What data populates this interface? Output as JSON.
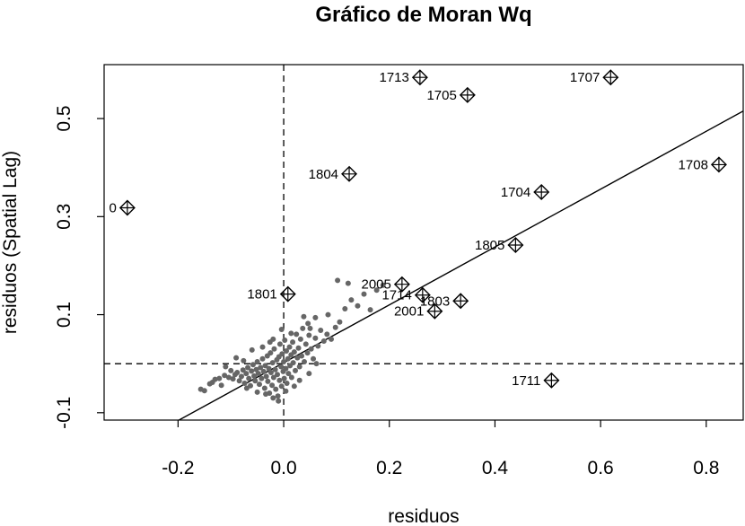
{
  "chart_data": {
    "type": "scatter",
    "title": "Gráfico de Moran Wq",
    "xlabel": "residuos",
    "ylabel": "residuos (Spatial Lag)",
    "xlim": [
      -0.34,
      0.87
    ],
    "ylim": [
      -0.115,
      0.61
    ],
    "x_ticks": [
      -0.2,
      0.0,
      0.2,
      0.4,
      0.6,
      0.8
    ],
    "x_tick_labels": [
      "-0.2",
      "0.0",
      "0.2",
      "0.4",
      "0.6",
      "0.8"
    ],
    "y_ticks": [
      -0.1,
      0.1,
      0.3,
      0.5
    ],
    "y_tick_labels": [
      "-0.1",
      "0.1",
      "0.3",
      "0.5"
    ],
    "reference_lines": {
      "x_mean": 0.0,
      "y_mean": 0.0,
      "style": "dashed"
    },
    "regression_line": {
      "slope": 0.59,
      "intercept": 0.002
    },
    "grid": false,
    "influential_points": [
      {
        "label": "1713",
        "x": 0.258,
        "y": 0.584
      },
      {
        "label": "1707",
        "x": 0.619,
        "y": 0.584
      },
      {
        "label": "1705",
        "x": 0.348,
        "y": 0.548
      },
      {
        "label": "1804",
        "x": 0.124,
        "y": 0.387
      },
      {
        "label": "1708",
        "x": 0.824,
        "y": 0.406
      },
      {
        "label": "1704",
        "x": 0.488,
        "y": 0.35
      },
      {
        "label": "0",
        "x": -0.296,
        "y": 0.318
      },
      {
        "label": "1805",
        "x": 0.439,
        "y": 0.242
      },
      {
        "label": "2005",
        "x": 0.224,
        "y": 0.162
      },
      {
        "label": "1801",
        "x": 0.008,
        "y": 0.142
      },
      {
        "label": "1714",
        "x": 0.263,
        "y": 0.14
      },
      {
        "label": "1803",
        "x": 0.335,
        "y": 0.128
      },
      {
        "label": "2001",
        "x": 0.286,
        "y": 0.107
      },
      {
        "label": "1711",
        "x": 0.507,
        "y": -0.034
      }
    ],
    "points": [
      [
        -0.157,
        -0.052
      ],
      [
        -0.15,
        -0.055
      ],
      [
        -0.14,
        -0.041
      ],
      [
        -0.135,
        -0.038
      ],
      [
        -0.13,
        -0.032
      ],
      [
        -0.122,
        -0.03
      ],
      [
        -0.112,
        -0.024
      ],
      [
        -0.104,
        -0.028
      ],
      [
        -0.096,
        -0.031
      ],
      [
        -0.092,
        -0.022
      ],
      [
        -0.088,
        -0.018
      ],
      [
        -0.084,
        -0.035
      ],
      [
        -0.08,
        -0.026
      ],
      [
        -0.077,
        -0.013
      ],
      [
        -0.074,
        -0.04
      ],
      [
        -0.071,
        -0.02
      ],
      [
        -0.068,
        -0.008
      ],
      [
        -0.066,
        -0.03
      ],
      [
        -0.063,
        -0.045
      ],
      [
        -0.061,
        -0.015
      ],
      [
        -0.058,
        -0.002
      ],
      [
        -0.056,
        -0.025
      ],
      [
        -0.054,
        -0.035
      ],
      [
        -0.052,
        -0.012
      ],
      [
        -0.05,
        0.004
      ],
      [
        -0.048,
        -0.02
      ],
      [
        -0.046,
        -0.042
      ],
      [
        -0.044,
        -0.008
      ],
      [
        -0.042,
        -0.03
      ],
      [
        -0.04,
        0.01
      ],
      [
        -0.038,
        -0.016
      ],
      [
        -0.036,
        -0.05
      ],
      [
        -0.035,
        -0.004
      ],
      [
        -0.033,
        -0.026
      ],
      [
        -0.031,
        0.016
      ],
      [
        -0.03,
        -0.036
      ],
      [
        -0.028,
        -0.01
      ],
      [
        -0.027,
        -0.06
      ],
      [
        -0.025,
        0.022
      ],
      [
        -0.024,
        -0.018
      ],
      [
        -0.022,
        -0.044
      ],
      [
        -0.021,
        0.002
      ],
      [
        -0.019,
        -0.028
      ],
      [
        -0.018,
        0.03
      ],
      [
        -0.016,
        -0.012
      ],
      [
        -0.015,
        -0.052
      ],
      [
        -0.013,
        0.008
      ],
      [
        -0.012,
        -0.022
      ],
      [
        -0.011,
        -0.066
      ],
      [
        -0.009,
        0.014
      ],
      [
        -0.008,
        -0.034
      ],
      [
        -0.007,
        0.04
      ],
      [
        -0.005,
        -0.006
      ],
      [
        -0.004,
        -0.046
      ],
      [
        -0.003,
        0.02
      ],
      [
        -0.001,
        -0.016
      ],
      [
        0.0,
        0.004
      ],
      [
        0.001,
        -0.03
      ],
      [
        0.002,
        0.048
      ],
      [
        0.004,
        -0.01
      ],
      [
        0.005,
        0.026
      ],
      [
        0.006,
        -0.04
      ],
      [
        0.008,
        0.01
      ],
      [
        0.009,
        -0.02
      ],
      [
        0.011,
        0.034
      ],
      [
        0.012,
        -0.004
      ],
      [
        0.014,
        0.018
      ],
      [
        0.015,
        -0.028
      ],
      [
        0.017,
        0.044
      ],
      [
        0.018,
        0.002
      ],
      [
        0.02,
        0.024
      ],
      [
        0.022,
        -0.014
      ],
      [
        0.024,
        0.06
      ],
      [
        0.026,
        0.012
      ],
      [
        0.028,
        0.032
      ],
      [
        0.03,
        -0.006
      ],
      [
        0.032,
        0.05
      ],
      [
        0.034,
        0.016
      ],
      [
        0.036,
        0.072
      ],
      [
        0.039,
        0.004
      ],
      [
        0.042,
        0.04
      ],
      [
        0.045,
        0.022
      ],
      [
        0.048,
        0.058
      ],
      [
        0.052,
        0.03
      ],
      [
        0.056,
        0.01
      ],
      [
        0.06,
        0.052
      ],
      [
        0.065,
        0.036
      ],
      [
        0.07,
        0.068
      ],
      [
        0.076,
        0.046
      ],
      [
        0.082,
        0.06
      ],
      [
        0.09,
        0.05
      ],
      [
        0.098,
        0.074
      ],
      [
        0.106,
        0.085
      ],
      [
        0.116,
        0.112
      ],
      [
        0.128,
        0.13
      ],
      [
        0.14,
        0.118
      ],
      [
        0.152,
        0.142
      ],
      [
        0.164,
        0.11
      ],
      [
        0.176,
        0.15
      ],
      [
        0.188,
        0.16
      ],
      [
        0.102,
        0.17
      ],
      [
        0.122,
        0.164
      ],
      [
        0.084,
        0.1
      ],
      [
        0.06,
        0.094
      ],
      [
        0.046,
        0.082
      ],
      [
        0.038,
        0.096
      ],
      [
        -0.02,
        0.05
      ],
      [
        -0.04,
        0.034
      ],
      [
        -0.06,
        0.028
      ],
      [
        -0.09,
        0.012
      ],
      [
        -0.11,
        -0.006
      ],
      [
        -0.07,
        -0.05
      ],
      [
        -0.05,
        -0.058
      ],
      [
        -0.02,
        -0.07
      ],
      [
        0.004,
        -0.056
      ],
      [
        0.02,
        -0.046
      ],
      [
        0.03,
        -0.034
      ],
      [
        -0.01,
        -0.076
      ],
      [
        -0.034,
        -0.062
      ],
      [
        -0.076,
        0.006
      ],
      [
        -0.1,
        -0.014
      ],
      [
        -0.118,
        -0.044
      ],
      [
        0.048,
        -0.02
      ],
      [
        0.062,
        0.0
      ],
      [
        0.014,
        0.062
      ],
      [
        -0.004,
        0.07
      ],
      [
        -0.026,
        0.044
      ],
      [
        0.05,
        0.072
      ]
    ]
  }
}
